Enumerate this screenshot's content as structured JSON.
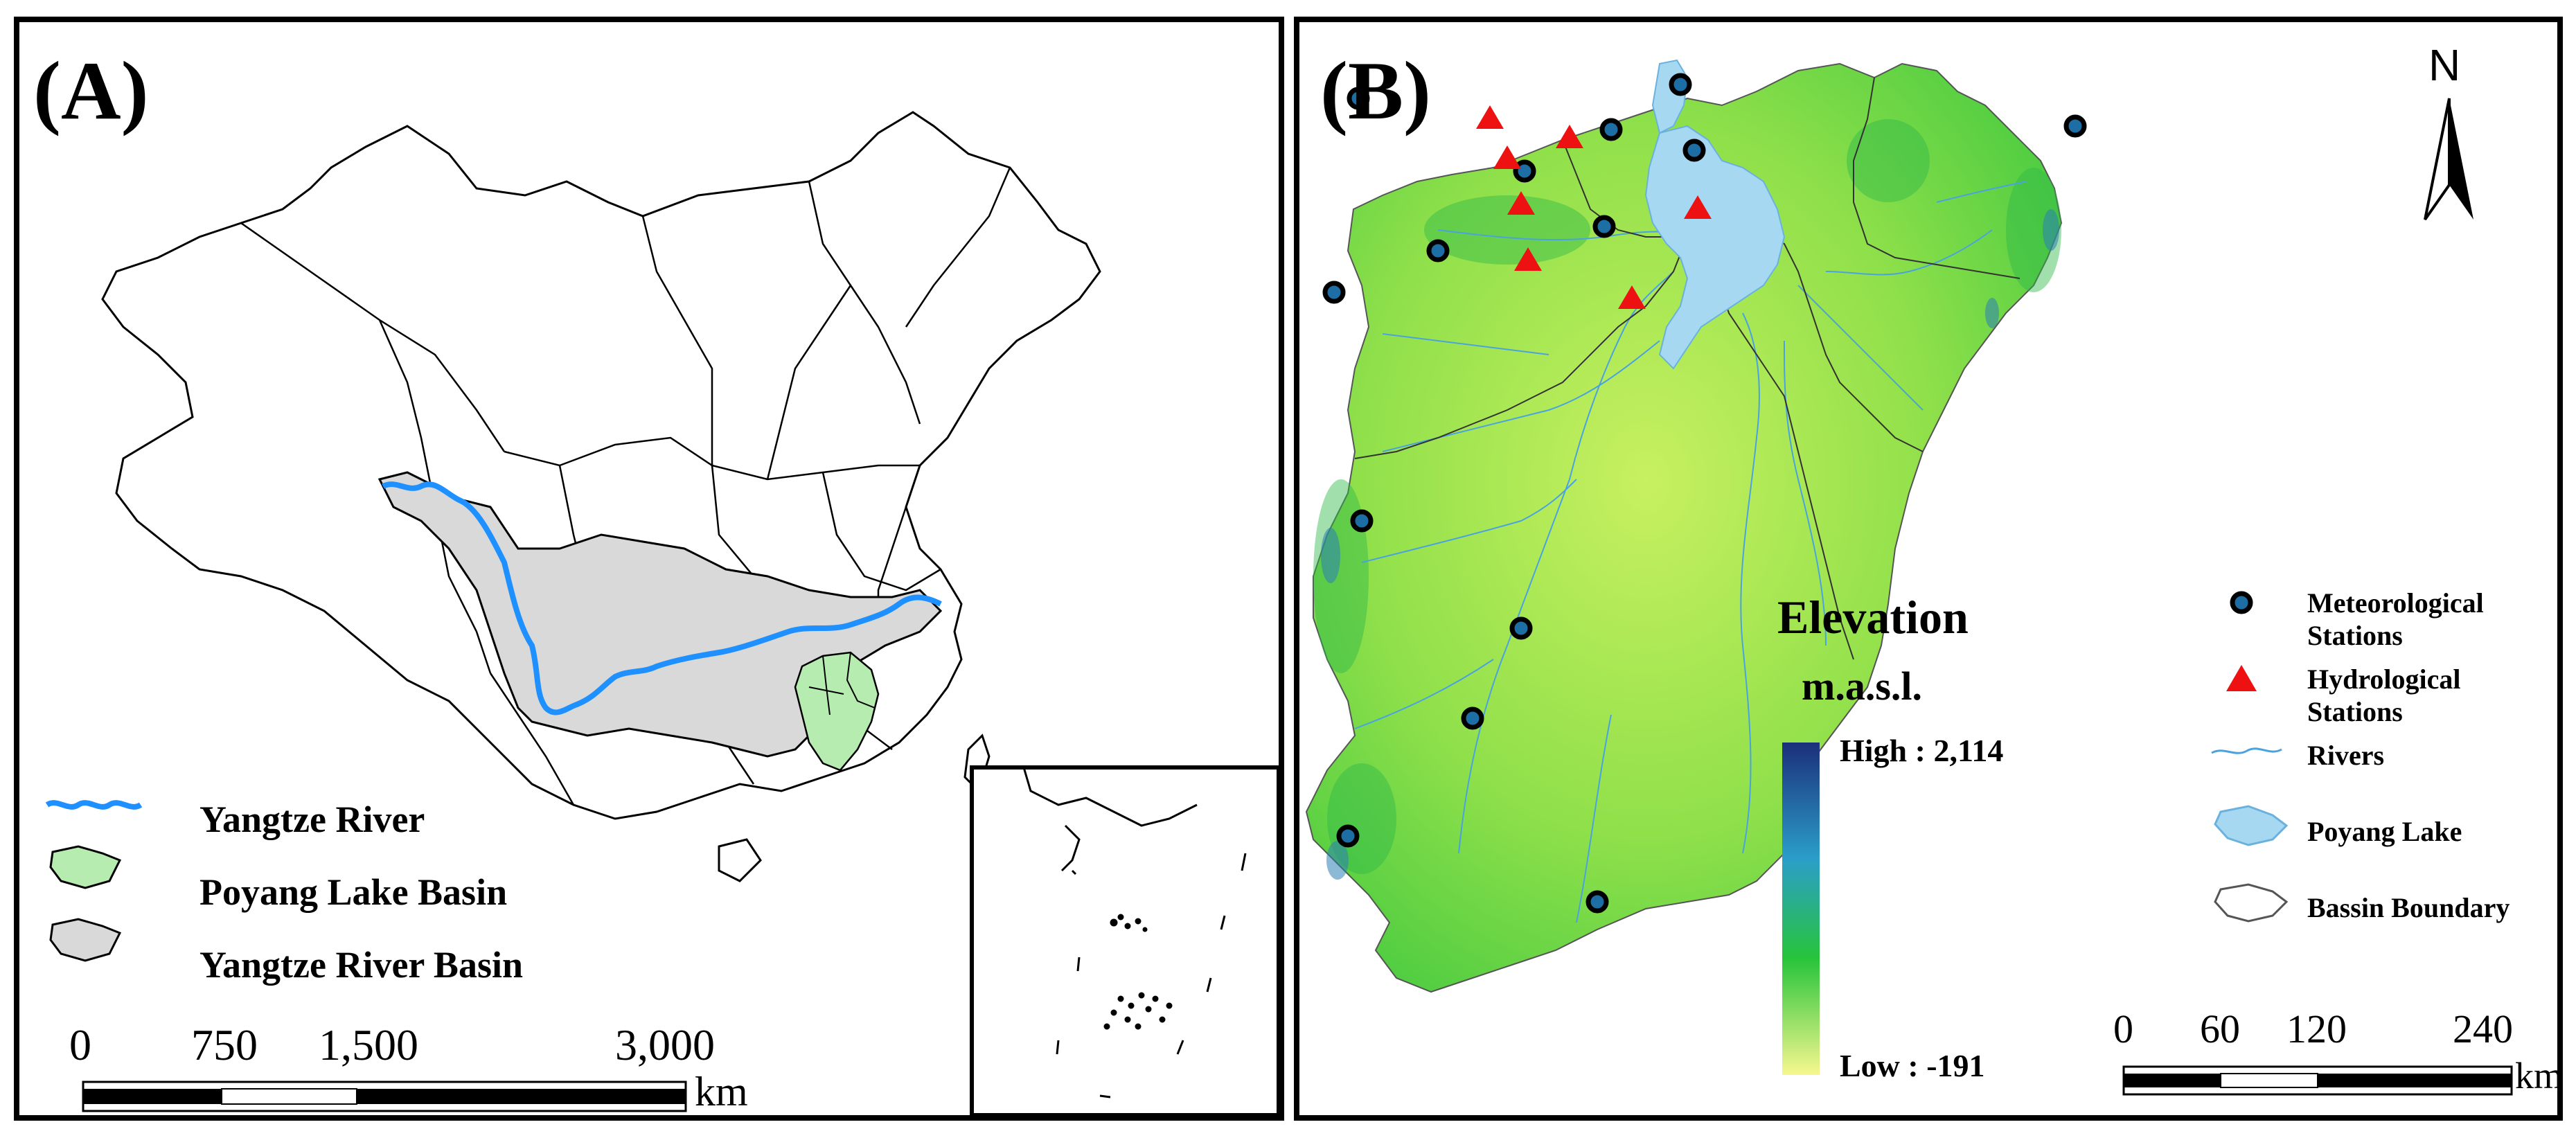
{
  "panel_a": {
    "label": "(A)",
    "legend": [
      {
        "label": "Yangtze River",
        "color": "#1e90ff"
      },
      {
        "label": "Poyang Lake Basin",
        "color": "#b6ecb0"
      },
      {
        "label": "Yangtze River Basin",
        "color": "#d9d9d9"
      }
    ],
    "scale": {
      "ticks": [
        "0",
        "750",
        "1,500",
        "3,000"
      ],
      "unit": "km"
    }
  },
  "panel_b": {
    "label": "(B)",
    "north": "N",
    "elevation": {
      "title": "Elevation",
      "unit": "m.a.s.l.",
      "high": "High : 2,114",
      "low": "Low : -191",
      "colors": [
        "#1b2f7a",
        "#2b9ec9",
        "#27c43a",
        "#f7f78f"
      ]
    },
    "legend": [
      {
        "label": "Meteorological Stations",
        "symbol": "circle",
        "color": "#1c6ea4"
      },
      {
        "label": "Hydrological Stations",
        "symbol": "triangle",
        "color": "#ee1111"
      },
      {
        "label": "Rivers",
        "symbol": "river-line",
        "color": "#4aa3df"
      },
      {
        "label": "Poyang Lake",
        "symbol": "lake",
        "color": "#a6d8f2"
      },
      {
        "label": "Bassin Boundary",
        "symbol": "boundary",
        "color": "#555555"
      }
    ],
    "scale": {
      "ticks": [
        "0",
        "60",
        "120",
        "240"
      ],
      "unit": "km"
    }
  }
}
